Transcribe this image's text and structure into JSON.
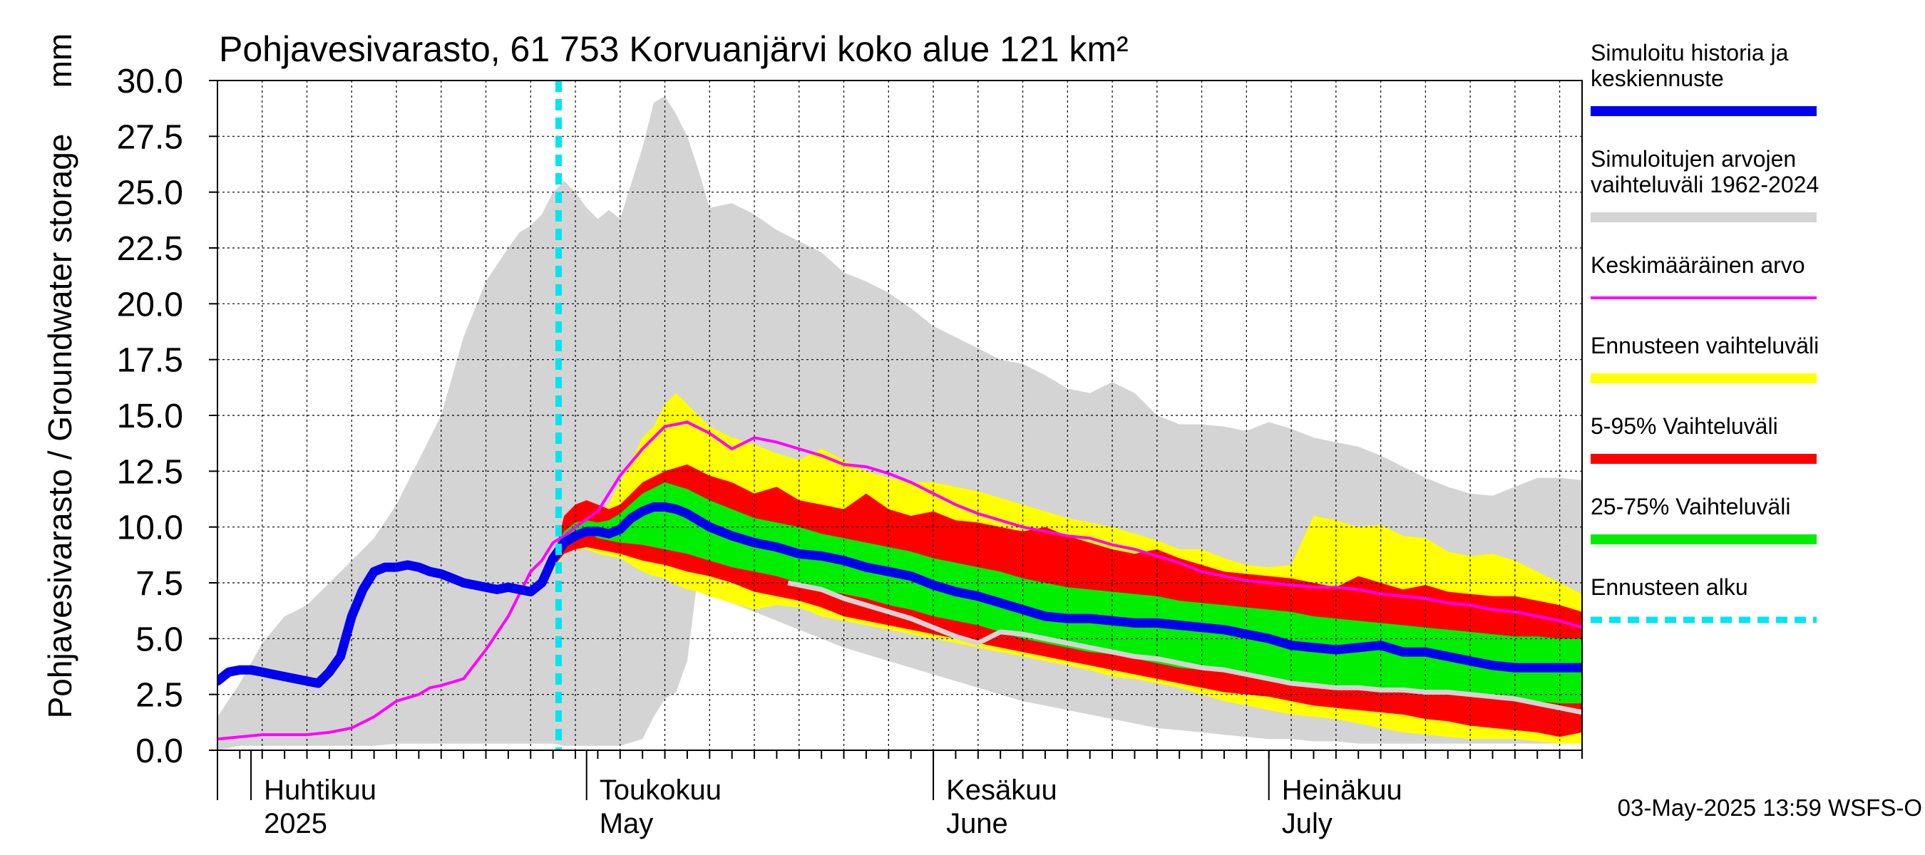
{
  "chart_data": {
    "type": "area",
    "title": "Pohjavesivarasto, 61 753 Korvuanjärvi koko alue 121 km²",
    "ylabel": "Pohjavesivarasto / Groundwater storage",
    "yunit": "mm",
    "ylim": [
      0,
      30
    ],
    "yticks": [
      "0.0",
      "2.5",
      "5.0",
      "7.5",
      "10.0",
      "12.5",
      "15.0",
      "17.5",
      "20.0",
      "22.5",
      "25.0",
      "27.5",
      "30.0"
    ],
    "xlim": [
      0,
      122
    ],
    "x_unit": "days since 2025-03-29",
    "month_labels": [
      {
        "line1": "Huhtikuu",
        "line2": "2025",
        "day": 3
      },
      {
        "line1": "Toukokuu",
        "line2": "May",
        "day": 33
      },
      {
        "line1": "Kesäkuu",
        "line2": "June",
        "day": 64
      },
      {
        "line1": "Heinäkuu",
        "line2": "July",
        "day": 94
      }
    ],
    "forecast_start_day": 30.5,
    "timestamp": "03-May-2025 13:59 WSFS-O",
    "legend": [
      {
        "label": "Simuloitu historia ja keskiennuste",
        "color": "#0000ee",
        "style": "thick"
      },
      {
        "label": "Simuloitujen arvojen vaihteluväli 1962-2024",
        "color": "#d4d4d4",
        "style": "band"
      },
      {
        "label": "Keskimääräinen arvo",
        "color": "#ff00ff",
        "style": "thin"
      },
      {
        "label": "Ennusteen vaihteluväli",
        "color": "#ffff00",
        "style": "band"
      },
      {
        "label": "5-95% Vaihteluväli",
        "color": "#ff0000",
        "style": "band"
      },
      {
        "label": "25-75% Vaihteluväli",
        "color": "#00ee00",
        "style": "band"
      },
      {
        "label": "Ennusteen alku",
        "color": "#00e5ee",
        "style": "dashed"
      }
    ],
    "series": {
      "hist_range": {
        "x": [
          0,
          2,
          4,
          6,
          8,
          10,
          12,
          14,
          16,
          18,
          20,
          22,
          24,
          26,
          27,
          28,
          29,
          30,
          31,
          32,
          33,
          34,
          35,
          36,
          38,
          39,
          40,
          41,
          42,
          43,
          44,
          46,
          48,
          50,
          52,
          54,
          56,
          58,
          60,
          62,
          64,
          66,
          68,
          70,
          72,
          74,
          76,
          78,
          80,
          82,
          84,
          86,
          88,
          90,
          92,
          94,
          96,
          98,
          100,
          102,
          104,
          106,
          108,
          110,
          112,
          114,
          116,
          118,
          120,
          122
        ],
        "lower": [
          0,
          0.2,
          0.2,
          0.2,
          0.2,
          0.2,
          0.2,
          0.2,
          0.3,
          0.3,
          0.3,
          0.3,
          0.3,
          0.3,
          0.3,
          0.3,
          0.3,
          0.3,
          0.2,
          0.2,
          0.2,
          0.2,
          0.2,
          0.2,
          0.5,
          1.5,
          2.3,
          2.6,
          4.0,
          8.0,
          7.0,
          6.6,
          6.2,
          5.8,
          5.4,
          5.0,
          4.6,
          4.3,
          4.0,
          3.7,
          3.4,
          3.1,
          2.8,
          2.5,
          2.2,
          2.0,
          1.8,
          1.6,
          1.4,
          1.2,
          1.0,
          0.9,
          0.8,
          0.7,
          0.6,
          0.5,
          0.5,
          0.4,
          0.4,
          0.3,
          0.3,
          0.3,
          0.3,
          0.3,
          0.3,
          0.3,
          0.3,
          0.3,
          0.3,
          0.3
        ],
        "upper": [
          1.5,
          3.0,
          4.8,
          6.0,
          6.5,
          7.5,
          8.5,
          9.5,
          11.0,
          13.0,
          15.0,
          18.5,
          21.0,
          22.5,
          23.2,
          23.5,
          24.0,
          25.0,
          25.5,
          25.0,
          24.3,
          23.8,
          24.2,
          23.8,
          27.0,
          29.0,
          29.3,
          28.5,
          27.5,
          26.0,
          24.3,
          24.5,
          24.0,
          23.3,
          22.8,
          22.3,
          21.4,
          21.0,
          20.5,
          19.8,
          19.0,
          18.5,
          18.0,
          17.5,
          17.3,
          16.8,
          16.2,
          16.0,
          16.5,
          16.0,
          15.0,
          14.6,
          14.6,
          14.5,
          14.3,
          14.7,
          14.4,
          14.0,
          13.8,
          13.6,
          13.2,
          12.7,
          12.2,
          11.8,
          11.5,
          11.4,
          11.8,
          12.2,
          12.2,
          12.1
        ]
      },
      "forecast_range": {
        "x": [
          30,
          31,
          32,
          33,
          34,
          35,
          36,
          37,
          38,
          39,
          40,
          41,
          42,
          43,
          44,
          46,
          48,
          50,
          52,
          54,
          56,
          58,
          60,
          62,
          64,
          66,
          68,
          70,
          72,
          74,
          76,
          78,
          80,
          82,
          84,
          86,
          88,
          90,
          92,
          94,
          96,
          98,
          100,
          102,
          104,
          106,
          108,
          110,
          112,
          114,
          116,
          118,
          120,
          122
        ],
        "lower": [
          8.0,
          8.8,
          9.0,
          9.0,
          8.8,
          8.7,
          8.6,
          8.3,
          8.0,
          7.8,
          7.7,
          7.4,
          7.2,
          7.1,
          6.9,
          6.6,
          6.3,
          6.5,
          6.4,
          6.0,
          5.8,
          5.6,
          5.4,
          5.2,
          5.0,
          4.8,
          4.6,
          4.4,
          4.2,
          4.0,
          3.8,
          3.6,
          3.3,
          3.2,
          3.0,
          2.8,
          2.5,
          2.2,
          2.0,
          1.8,
          1.6,
          1.5,
          1.4,
          1.2,
          1.0,
          0.8,
          0.7,
          0.6,
          0.5,
          0.5,
          0.5,
          0.4,
          0.3,
          0.3
        ],
        "upper": [
          8.5,
          10.0,
          10.5,
          10.8,
          10.6,
          11.0,
          12.0,
          13.0,
          14.0,
          14.5,
          15.5,
          16.0,
          15.5,
          15.0,
          14.5,
          14.0,
          13.7,
          13.3,
          13.0,
          13.5,
          13.0,
          12.5,
          12.2,
          12.0,
          12.0,
          11.8,
          11.6,
          11.3,
          11.0,
          10.7,
          10.4,
          10.2,
          10.0,
          9.7,
          9.4,
          9.0,
          9.0,
          8.6,
          8.3,
          8.2,
          8.3,
          10.5,
          10.3,
          10.0,
          10.1,
          9.6,
          9.5,
          8.9,
          8.7,
          8.8,
          8.5,
          8.0,
          7.5,
          7.0
        ]
      },
      "p5_95": {
        "x": [
          30,
          31,
          32,
          33,
          34,
          35,
          36,
          38,
          40,
          42,
          44,
          46,
          48,
          50,
          52,
          54,
          56,
          58,
          60,
          62,
          64,
          66,
          68,
          70,
          72,
          74,
          76,
          78,
          80,
          82,
          84,
          86,
          88,
          90,
          92,
          94,
          96,
          98,
          100,
          102,
          104,
          106,
          108,
          110,
          112,
          114,
          116,
          118,
          120,
          122
        ],
        "lower": [
          8.2,
          8.8,
          9.0,
          9.1,
          9.0,
          8.9,
          8.8,
          8.5,
          8.3,
          8.0,
          7.8,
          7.5,
          7.1,
          6.9,
          6.7,
          6.4,
          6.0,
          5.8,
          5.6,
          5.4,
          5.2,
          5.0,
          4.8,
          4.6,
          4.4,
          4.2,
          4.0,
          3.8,
          3.6,
          3.4,
          3.2,
          3.0,
          2.8,
          2.6,
          2.5,
          2.4,
          2.2,
          2.0,
          1.9,
          1.8,
          1.7,
          1.6,
          1.4,
          1.3,
          1.1,
          1.0,
          0.9,
          0.8,
          0.6,
          0.8
        ],
        "upper": [
          8.5,
          10.5,
          11.0,
          11.2,
          11.0,
          10.8,
          11.0,
          12.0,
          12.5,
          12.8,
          12.3,
          12.0,
          11.5,
          11.8,
          11.2,
          11.0,
          10.8,
          11.5,
          10.8,
          10.5,
          10.7,
          10.3,
          10.2,
          10.0,
          9.8,
          10.0,
          9.6,
          9.3,
          9.0,
          8.8,
          9.0,
          8.6,
          8.3,
          8.0,
          7.9,
          7.8,
          7.7,
          7.5,
          7.3,
          7.8,
          7.5,
          7.2,
          7.4,
          7.1,
          7.0,
          6.9,
          6.9,
          6.7,
          6.5,
          6.2
        ]
      },
      "p25_75": {
        "x": [
          30,
          31,
          32,
          33,
          34,
          35,
          36,
          38,
          40,
          42,
          44,
          46,
          48,
          50,
          52,
          54,
          56,
          58,
          60,
          62,
          64,
          66,
          68,
          70,
          72,
          74,
          76,
          78,
          80,
          82,
          84,
          86,
          88,
          90,
          92,
          94,
          96,
          98,
          100,
          102,
          104,
          106,
          108,
          110,
          112,
          114,
          116,
          118,
          120,
          122
        ],
        "lower": [
          8.8,
          9.5,
          9.8,
          9.8,
          9.5,
          9.4,
          9.3,
          9.2,
          9.0,
          8.8,
          8.5,
          8.2,
          8.0,
          7.8,
          7.5,
          7.2,
          7.0,
          6.8,
          6.5,
          6.3,
          6.0,
          5.8,
          5.6,
          5.3,
          5.0,
          4.8,
          4.6,
          4.4,
          4.3,
          4.1,
          3.9,
          3.7,
          3.6,
          3.5,
          3.4,
          3.3,
          3.1,
          3.0,
          2.9,
          2.8,
          2.7,
          2.6,
          2.6,
          2.5,
          2.4,
          2.4,
          2.3,
          2.2,
          2.1,
          2.1
        ],
        "upper": [
          8.9,
          9.8,
          10.2,
          10.3,
          10.2,
          10.3,
          10.6,
          11.5,
          12.0,
          11.7,
          11.2,
          10.8,
          10.4,
          10.2,
          10.0,
          9.7,
          9.5,
          9.3,
          9.1,
          8.9,
          8.6,
          8.4,
          8.2,
          8.0,
          7.7,
          7.5,
          7.3,
          7.2,
          7.1,
          7.0,
          6.9,
          6.7,
          6.6,
          6.5,
          6.4,
          6.3,
          6.2,
          6.0,
          5.9,
          5.8,
          5.7,
          5.6,
          5.5,
          5.4,
          5.3,
          5.2,
          5.1,
          5.1,
          5.0,
          5.0
        ]
      },
      "mean": {
        "x": [
          0,
          2,
          4,
          6,
          8,
          10,
          12,
          14,
          16,
          18,
          19,
          20,
          22,
          24,
          26,
          28,
          29,
          30,
          31,
          32,
          34,
          36,
          38,
          40,
          42,
          44,
          46,
          48,
          50,
          52,
          54,
          56,
          58,
          60,
          62,
          64,
          66,
          68,
          70,
          72,
          74,
          76,
          78,
          80,
          82,
          84,
          86,
          88,
          90,
          92,
          94,
          96,
          98,
          100,
          102,
          104,
          106,
          108,
          110,
          112,
          114,
          116,
          118,
          120,
          122
        ],
        "y": [
          0.5,
          0.6,
          0.7,
          0.7,
          0.7,
          0.8,
          1.0,
          1.5,
          2.2,
          2.5,
          2.8,
          2.9,
          3.2,
          4.5,
          6.0,
          8.0,
          8.5,
          9.3,
          9.6,
          10.0,
          10.7,
          12.3,
          13.5,
          14.5,
          14.7,
          14.2,
          13.5,
          14.0,
          13.8,
          13.5,
          13.2,
          12.8,
          12.7,
          12.4,
          12.0,
          11.5,
          11.0,
          10.6,
          10.3,
          10.0,
          9.8,
          9.6,
          9.5,
          9.2,
          9.0,
          8.7,
          8.4,
          8.0,
          7.8,
          7.6,
          7.5,
          7.4,
          7.3,
          7.3,
          7.2,
          7.0,
          6.9,
          6.8,
          6.6,
          6.5,
          6.3,
          6.2,
          6.0,
          5.8,
          5.5
        ]
      },
      "sim_history": {
        "x": [
          0,
          1,
          2,
          3,
          4,
          5,
          6,
          7,
          8,
          9,
          10,
          11,
          12,
          13,
          14,
          15,
          16,
          17,
          18,
          19,
          20,
          21,
          22,
          23,
          24,
          25,
          26,
          27,
          28,
          29,
          30
        ],
        "y": [
          3.1,
          3.5,
          3.6,
          3.6,
          3.5,
          3.4,
          3.3,
          3.2,
          3.1,
          3.0,
          3.5,
          4.2,
          6.0,
          7.2,
          8.0,
          8.2,
          8.2,
          8.3,
          8.2,
          8.0,
          7.9,
          7.7,
          7.5,
          7.4,
          7.3,
          7.2,
          7.3,
          7.2,
          7.1,
          7.5,
          8.6
        ]
      },
      "forecast_median": {
        "x": [
          30,
          31,
          32,
          33,
          34,
          35,
          36,
          37,
          38,
          39,
          40,
          41,
          42,
          44,
          46,
          48,
          50,
          52,
          54,
          56,
          58,
          60,
          62,
          64,
          66,
          68,
          70,
          72,
          74,
          76,
          78,
          80,
          82,
          84,
          86,
          88,
          90,
          92,
          94,
          96,
          98,
          100,
          102,
          104,
          106,
          108,
          110,
          112,
          114,
          116,
          118,
          120,
          122
        ],
        "y": [
          8.6,
          9.3,
          9.6,
          9.8,
          9.8,
          9.7,
          9.9,
          10.4,
          10.7,
          10.9,
          10.9,
          10.8,
          10.6,
          10.0,
          9.6,
          9.3,
          9.1,
          8.8,
          8.7,
          8.5,
          8.2,
          8.0,
          7.8,
          7.4,
          7.1,
          6.9,
          6.6,
          6.3,
          6.0,
          5.9,
          5.9,
          5.8,
          5.7,
          5.7,
          5.6,
          5.5,
          5.4,
          5.2,
          5.0,
          4.7,
          4.6,
          4.5,
          4.6,
          4.7,
          4.4,
          4.4,
          4.2,
          4.0,
          3.8,
          3.7,
          3.7,
          3.7,
          3.7
        ]
      },
      "grey_line": {
        "x": [
          51,
          54,
          56,
          58,
          60,
          62,
          64,
          66,
          68,
          70,
          72,
          74,
          76,
          78,
          80,
          82,
          84,
          86,
          88,
          90,
          92,
          94,
          96,
          98,
          100,
          102,
          104,
          106,
          108,
          110,
          112,
          114,
          116,
          118,
          120,
          122
        ],
        "y": [
          7.5,
          7.2,
          6.8,
          6.5,
          6.2,
          5.9,
          5.5,
          5.1,
          4.8,
          5.3,
          5.2,
          5.0,
          4.8,
          4.6,
          4.4,
          4.2,
          4.1,
          3.9,
          3.7,
          3.6,
          3.4,
          3.2,
          3.0,
          2.9,
          2.8,
          2.8,
          2.7,
          2.7,
          2.6,
          2.6,
          2.5,
          2.4,
          2.3,
          2.1,
          1.9,
          1.7
        ]
      }
    }
  }
}
